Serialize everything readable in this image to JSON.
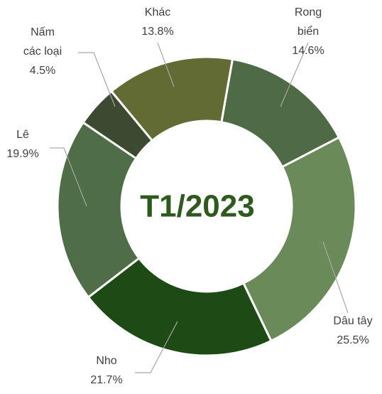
{
  "chart_data": {
    "type": "pie",
    "donut": true,
    "title": "T1/2023",
    "categories": [
      "Rong biển",
      "Dâu tây",
      "Nho",
      "Lê",
      "Nấm các loại",
      "Khác"
    ],
    "values": [
      14.6,
      25.5,
      21.7,
      19.9,
      4.5,
      13.8
    ],
    "value_labels": [
      "14.6%",
      "25.5%",
      "21.7%",
      "19.9%",
      "4.5%",
      "13.8%"
    ],
    "colors": [
      "#4e6b45",
      "#6a8a5a",
      "#1e4a15",
      "#4f6d47",
      "#3b4a30",
      "#636b35"
    ],
    "start_angle": 10
  }
}
